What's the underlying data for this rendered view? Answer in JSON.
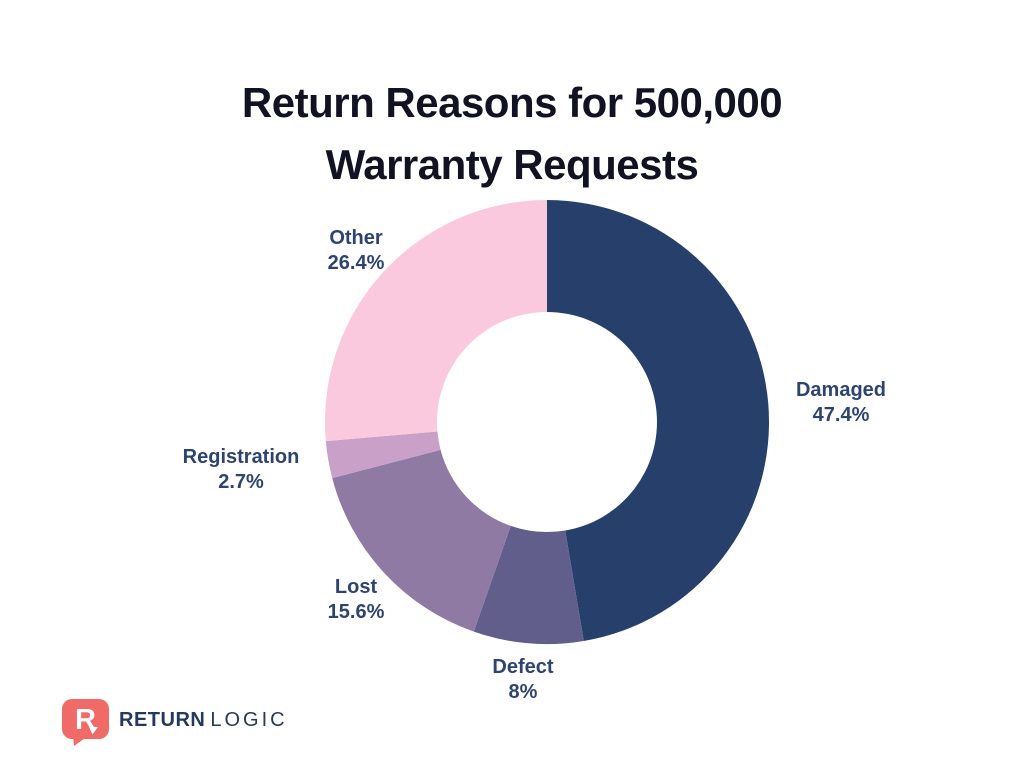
{
  "page": {
    "background": "#ffffff"
  },
  "title": {
    "line1": "Return Reasons for 500,000",
    "line2": "Warranty Requests",
    "color": "#111222"
  },
  "chart_data": {
    "type": "pie",
    "subtype": "donut",
    "title": "Return Reasons for 500,000 Warranty Requests",
    "unit": "%",
    "direction": "clockwise",
    "start_angle_deg": 0,
    "inner_radius_ratio": 0.495,
    "legend_position": "labels-around-donut",
    "categories": [
      "Damaged",
      "Defect",
      "Lost",
      "Registration",
      "Other"
    ],
    "values": [
      47.4,
      8,
      15.6,
      2.7,
      26.4
    ],
    "segments": [
      {
        "label": "Damaged",
        "value": 47.4,
        "display": "47.4%",
        "color": "#26406B"
      },
      {
        "label": "Defect",
        "value": 8,
        "display": "8%",
        "color": "#615E8C"
      },
      {
        "label": "Lost",
        "value": 15.6,
        "display": "15.6%",
        "color": "#8F7AA3"
      },
      {
        "label": "Registration",
        "value": 2.7,
        "display": "2.7%",
        "color": "#C9A0C7"
      },
      {
        "label": "Other",
        "value": 26.4,
        "display": "26.4%",
        "color": "#FBC9DD"
      }
    ],
    "label_color": "#2E4470"
  },
  "logo": {
    "brand_primary": "RETURN",
    "brand_secondary": "LOGIC",
    "icon_letter": "R",
    "icon_color": "#F06A68",
    "text_color": "#25395F"
  }
}
